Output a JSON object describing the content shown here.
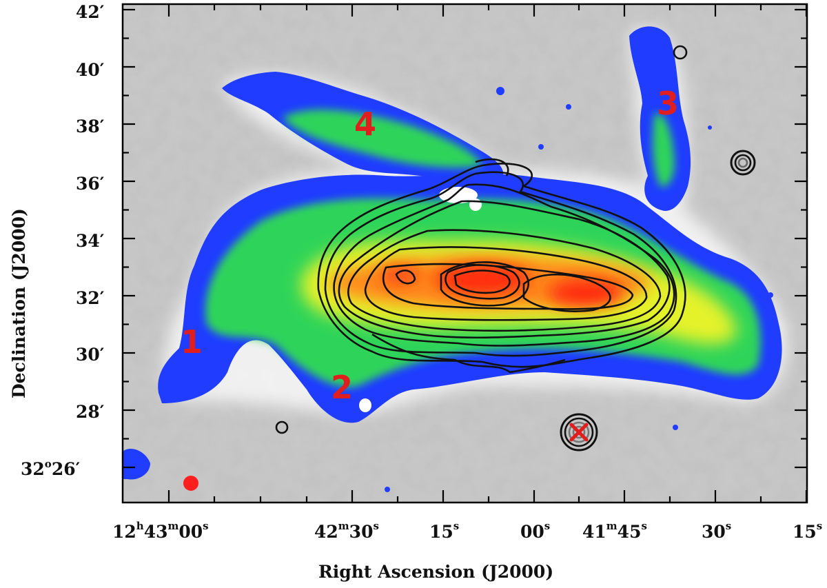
{
  "axes": {
    "x_title": "Right Ascension (J2000)",
    "y_title": "Declination (J2000)",
    "x_ticks": [
      {
        "main": "12",
        "s1": "h",
        "b": "43",
        "s2": "m",
        "c": "00",
        "s3": "s"
      },
      {
        "main": "42",
        "s1": "m",
        "b": "30",
        "s2": "s"
      },
      {
        "main": "15",
        "s1": "s"
      },
      {
        "main": "00",
        "s1": "s"
      },
      {
        "main": "41",
        "s1": "m",
        "b": "45",
        "s2": "s"
      },
      {
        "main": "30",
        "s1": "s"
      },
      {
        "main": "15",
        "s1": "s"
      }
    ],
    "y_ticks": [
      {
        "main": "42",
        "prime": "′"
      },
      {
        "main": "40",
        "prime": "′"
      },
      {
        "main": "38",
        "prime": "′"
      },
      {
        "main": "36",
        "prime": "′"
      },
      {
        "main": "34",
        "prime": "′"
      },
      {
        "main": "32",
        "prime": "′"
      },
      {
        "main": "30",
        "prime": "′"
      },
      {
        "main": "28",
        "prime": "′"
      },
      {
        "main": "32",
        "deg": "o",
        "rest": "26′"
      }
    ]
  },
  "regions": {
    "r1": "1",
    "r2": "2",
    "r3": "3",
    "r4": "4"
  },
  "colors": {
    "label_red": "#e01e1e",
    "contour": "#111111",
    "background_gray": "#b8b8b8"
  },
  "markers": {
    "cross_icon": "x-cross-icon",
    "beam_icon": "red-dot-beam-icon"
  }
}
